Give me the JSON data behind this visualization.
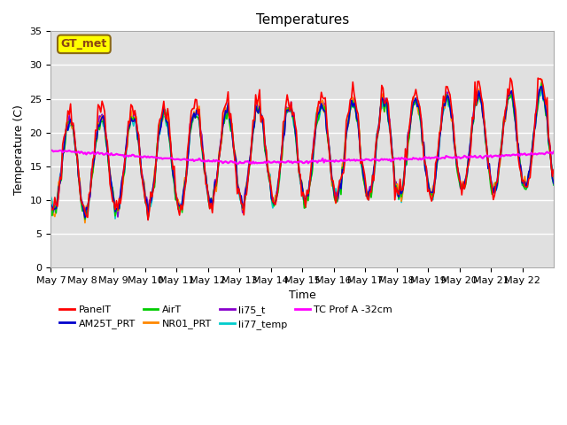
{
  "title": "Temperatures",
  "xlabel": "Time",
  "ylabel": "Temperature (C)",
  "ylim": [
    0,
    35
  ],
  "bg_color": "#e0e0e0",
  "series_colors": {
    "PanelT": "#ff0000",
    "AM25T_PRT": "#0000cc",
    "AirT": "#00cc00",
    "NR01_PRT": "#ff8800",
    "li75_t": "#8800cc",
    "li77_temp": "#00cccc",
    "TC Prof A -32cm": "#ff00ff"
  },
  "annotation_text": "GT_met",
  "annotation_box_facecolor": "#ffff00",
  "annotation_box_edgecolor": "#8B6914",
  "annotation_text_color": "#8B4513",
  "x_tick_labels": [
    "May 7",
    "May 8",
    "May 9",
    "May 10",
    "May 11",
    "May 12",
    "May 13",
    "May 14",
    "May 15",
    "May 16",
    "May 17",
    "May 18",
    "May 19",
    "May 20",
    "May 21",
    "May 22"
  ],
  "y_ticks": [
    0,
    5,
    10,
    15,
    20,
    25,
    30,
    35
  ],
  "grid_color": "#ffffff",
  "lw": 1.2,
  "n_days": 16,
  "n_points": 384
}
